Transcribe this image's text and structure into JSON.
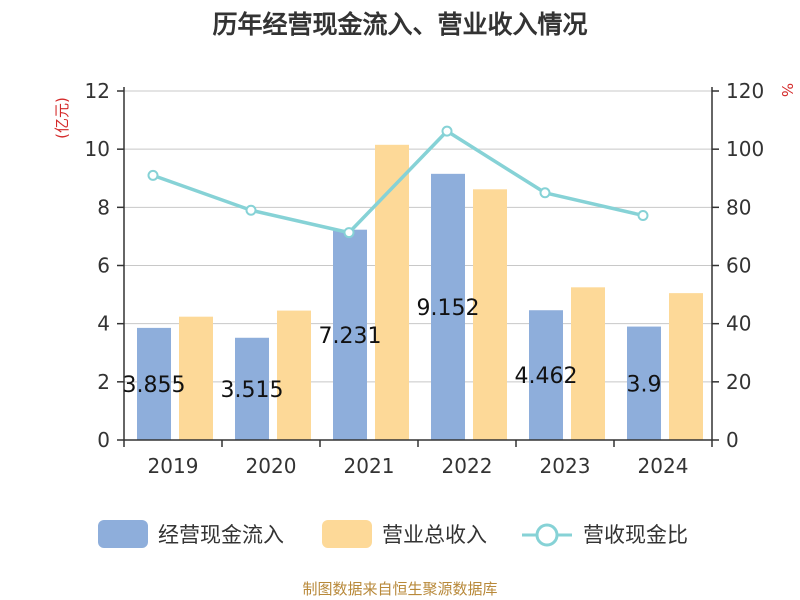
{
  "page": {
    "title": "历年经营现金流入、营业收入情况",
    "source": "制图数据来自恒生聚源数据库"
  },
  "chart_data": {
    "type": "bar",
    "title": "历年经营现金流入、营业收入情况",
    "categories": [
      "2019",
      "2020",
      "2021",
      "2022",
      "2023",
      "2024"
    ],
    "left_axis": {
      "unit_label": "(亿元)",
      "min": 0,
      "max": 12,
      "ticks": [
        "0",
        "2",
        "4",
        "6",
        "8",
        "10",
        "12"
      ]
    },
    "right_axis": {
      "unit_label": "%",
      "min": 0,
      "max": 120,
      "ticks": [
        "0",
        "20",
        "40",
        "60",
        "80",
        "100",
        "120"
      ]
    },
    "grid": true,
    "legend_position": "bottom",
    "series": [
      {
        "name": "经营现金流入",
        "type": "bar",
        "axis": "left",
        "color": "#8eaedb",
        "values": [
          3.855,
          3.515,
          7.231,
          9.152,
          4.462,
          3.9
        ],
        "labels": [
          "3.855",
          "3.515",
          "7.231",
          "9.152",
          "4.462",
          "3.9"
        ]
      },
      {
        "name": "营业总收入",
        "type": "bar",
        "axis": "left",
        "color": "#fdd998",
        "values": [
          4.24,
          4.45,
          10.15,
          8.62,
          5.25,
          5.05
        ]
      },
      {
        "name": "营收现金比",
        "type": "line",
        "axis": "right",
        "color": "#86d2d6",
        "values": [
          91,
          79,
          71.3,
          106.2,
          85,
          77.2
        ]
      }
    ]
  }
}
